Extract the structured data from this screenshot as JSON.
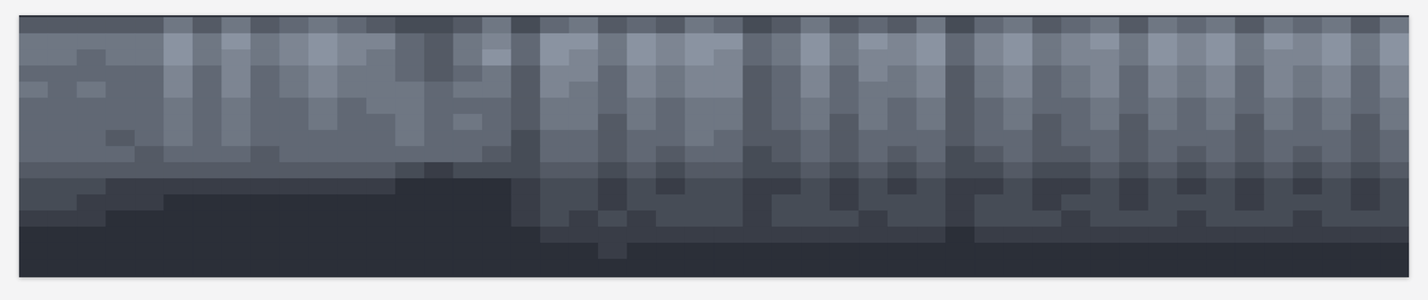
{
  "chart_data": {
    "type": "heatmap",
    "tick_labels": false,
    "zlim": [
      0,
      10
    ],
    "color": "#b3bece",
    "cells": [
      [
        3,
        3,
        3,
        3,
        3,
        5,
        3,
        5,
        3,
        4,
        5,
        4,
        3,
        2,
        2,
        3,
        5,
        2,
        4,
        5,
        3,
        4,
        3,
        5,
        4,
        2,
        3,
        5,
        3,
        4,
        3,
        5,
        2,
        4,
        5,
        3,
        4,
        5,
        3,
        5,
        4,
        5,
        3,
        5,
        4,
        5,
        3,
        5
      ],
      [
        5,
        5,
        5,
        5,
        5,
        7,
        5,
        7,
        5,
        6,
        7,
        6,
        6,
        4,
        3,
        5,
        6,
        4,
        7,
        7,
        5,
        7,
        6,
        7,
        7,
        4,
        5,
        7,
        5,
        7,
        6,
        7,
        4,
        6,
        7,
        5,
        6,
        7,
        5,
        7,
        6,
        7,
        5,
        7,
        6,
        7,
        5,
        7
      ],
      [
        5,
        5,
        4,
        5,
        5,
        7,
        5,
        6,
        5,
        6,
        7,
        6,
        5,
        4,
        3,
        5,
        7,
        4,
        7,
        6,
        5,
        7,
        6,
        7,
        6,
        4,
        5,
        7,
        5,
        6,
        6,
        7,
        4,
        6,
        7,
        5,
        6,
        6,
        5,
        7,
        6,
        7,
        5,
        6,
        6,
        7,
        5,
        7
      ],
      [
        4,
        4,
        4,
        4,
        4,
        6,
        4,
        6,
        4,
        5,
        6,
        5,
        5,
        4,
        3,
        4,
        5,
        3,
        6,
        6,
        4,
        6,
        5,
        6,
        6,
        3,
        4,
        6,
        4,
        6,
        5,
        6,
        3,
        5,
        6,
        4,
        5,
        6,
        4,
        6,
        5,
        6,
        4,
        6,
        5,
        6,
        4,
        6
      ],
      [
        5,
        4,
        5,
        4,
        4,
        6,
        4,
        6,
        4,
        5,
        6,
        5,
        5,
        5,
        4,
        5,
        5,
        3,
        6,
        5,
        4,
        6,
        5,
        6,
        6,
        3,
        4,
        6,
        4,
        5,
        5,
        6,
        3,
        5,
        6,
        4,
        5,
        6,
        4,
        6,
        5,
        6,
        4,
        6,
        5,
        6,
        4,
        6
      ],
      [
        4,
        4,
        4,
        4,
        4,
        5,
        4,
        5,
        4,
        4,
        5,
        4,
        5,
        5,
        4,
        4,
        4,
        3,
        5,
        5,
        4,
        5,
        4,
        5,
        5,
        3,
        4,
        5,
        4,
        5,
        4,
        5,
        3,
        4,
        5,
        4,
        4,
        5,
        4,
        5,
        4,
        5,
        4,
        5,
        4,
        5,
        4,
        5
      ],
      [
        4,
        4,
        4,
        4,
        4,
        5,
        4,
        5,
        4,
        4,
        5,
        4,
        4,
        5,
        4,
        5,
        4,
        3,
        5,
        5,
        3,
        5,
        4,
        5,
        5,
        3,
        4,
        5,
        3,
        5,
        4,
        5,
        3,
        4,
        5,
        3,
        4,
        5,
        3,
        5,
        4,
        5,
        3,
        5,
        4,
        5,
        3,
        5
      ],
      [
        4,
        4,
        4,
        3,
        4,
        5,
        4,
        5,
        4,
        4,
        4,
        4,
        4,
        5,
        4,
        4,
        4,
        2,
        4,
        4,
        3,
        4,
        4,
        5,
        4,
        3,
        3,
        4,
        3,
        4,
        4,
        4,
        3,
        4,
        4,
        3,
        4,
        4,
        3,
        4,
        4,
        4,
        3,
        4,
        4,
        4,
        3,
        4
      ],
      [
        4,
        4,
        4,
        4,
        3,
        4,
        4,
        4,
        3,
        4,
        4,
        4,
        4,
        4,
        4,
        4,
        3,
        2,
        4,
        4,
        3,
        4,
        3,
        4,
        4,
        2,
        3,
        4,
        3,
        4,
        3,
        4,
        2,
        3,
        4,
        3,
        3,
        4,
        3,
        4,
        3,
        4,
        3,
        4,
        3,
        4,
        3,
        4
      ],
      [
        3,
        3,
        3,
        3,
        3,
        3,
        3,
        3,
        3,
        3,
        3,
        3,
        3,
        2,
        1,
        2,
        2,
        2,
        3,
        3,
        2,
        3,
        2,
        3,
        3,
        2,
        2,
        3,
        2,
        3,
        2,
        3,
        2,
        2,
        3,
        2,
        2,
        3,
        2,
        3,
        2,
        3,
        2,
        3,
        2,
        3,
        2,
        3
      ],
      [
        2,
        2,
        2,
        1,
        1,
        1,
        1,
        1,
        1,
        1,
        1,
        1,
        1,
        0,
        0,
        0,
        0,
        1,
        2,
        2,
        1,
        2,
        1,
        2,
        2,
        1,
        1,
        2,
        1,
        2,
        1,
        2,
        1,
        1,
        2,
        1,
        1,
        2,
        1,
        2,
        1,
        2,
        1,
        2,
        1,
        2,
        1,
        2
      ],
      [
        2,
        2,
        1,
        1,
        1,
        0,
        0,
        0,
        0,
        0,
        0,
        0,
        0,
        0,
        0,
        0,
        0,
        1,
        2,
        2,
        1,
        2,
        2,
        2,
        2,
        1,
        2,
        2,
        1,
        2,
        2,
        2,
        1,
        2,
        2,
        1,
        2,
        2,
        1,
        2,
        2,
        2,
        1,
        2,
        2,
        2,
        1,
        2
      ],
      [
        1,
        1,
        1,
        0,
        0,
        0,
        0,
        0,
        0,
        0,
        0,
        0,
        0,
        0,
        0,
        0,
        0,
        1,
        2,
        1,
        2,
        1,
        2,
        2,
        2,
        1,
        2,
        2,
        2,
        1,
        2,
        2,
        1,
        2,
        2,
        2,
        1,
        2,
        2,
        2,
        1,
        2,
        2,
        2,
        1,
        2,
        2,
        2
      ],
      [
        0,
        0,
        0,
        0,
        0,
        0,
        0,
        0,
        0,
        0,
        0,
        0,
        0,
        0,
        0,
        0,
        0,
        0,
        1,
        1,
        1,
        1,
        1,
        1,
        1,
        1,
        1,
        1,
        1,
        1,
        1,
        1,
        0,
        1,
        1,
        1,
        1,
        1,
        1,
        1,
        1,
        1,
        1,
        1,
        1,
        1,
        1,
        1
      ],
      [
        0,
        0,
        0,
        0,
        0,
        0,
        0,
        0,
        0,
        0,
        0,
        0,
        0,
        0,
        0,
        0,
        0,
        0,
        0,
        0,
        1,
        0,
        0,
        0,
        0,
        0,
        0,
        0,
        0,
        0,
        0,
        0,
        0,
        0,
        0,
        0,
        0,
        0,
        0,
        0,
        0,
        0,
        0,
        0,
        0,
        0,
        0,
        0
      ],
      [
        0,
        0,
        0,
        0,
        0,
        0,
        0,
        0,
        0,
        0,
        0,
        0,
        0,
        0,
        0,
        0,
        0,
        0,
        0,
        0,
        0,
        0,
        0,
        0,
        0,
        0,
        0,
        0,
        0,
        0,
        0,
        0,
        0,
        0,
        0,
        0,
        0,
        0,
        0,
        0,
        0,
        0,
        0,
        0,
        0,
        0,
        0,
        0
      ]
    ]
  }
}
